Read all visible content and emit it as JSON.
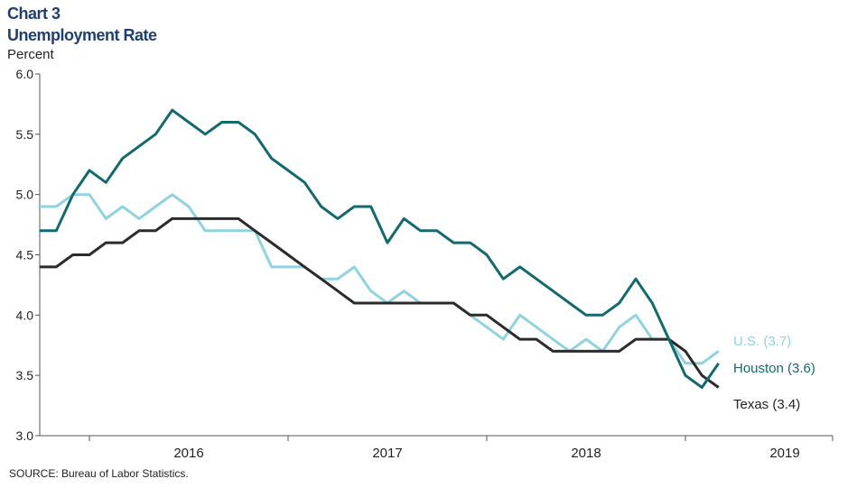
{
  "chart_data": {
    "type": "line",
    "title": "Chart 3",
    "subtitle": "Unemployment Rate",
    "ylabel": "Percent",
    "ylim": [
      3.0,
      6.0
    ],
    "yticks": [
      "3.0",
      "3.5",
      "4.0",
      "4.5",
      "5.0",
      "5.5",
      "6.0"
    ],
    "x_labels": [
      "2016",
      "2017",
      "2018",
      "2019"
    ],
    "x_start": "2015-10",
    "x_end": "2019-12",
    "grid": false,
    "legend": "direct labels at right end of lines",
    "series": [
      {
        "name": "U.S. (3.7)",
        "color": "#8fd3df",
        "values": [
          4.9,
          4.9,
          5.0,
          5.0,
          4.8,
          4.9,
          4.8,
          4.9,
          5.0,
          4.9,
          4.7,
          4.7,
          4.7,
          4.7,
          4.4,
          4.4,
          4.4,
          4.3,
          4.3,
          4.4,
          4.2,
          4.1,
          4.2,
          4.1,
          4.1,
          4.1,
          4.0,
          3.9,
          3.8,
          4.0,
          3.9,
          3.8,
          3.7,
          3.8,
          3.7,
          3.9,
          4.0,
          3.8,
          3.8,
          3.6,
          3.6,
          3.7
        ]
      },
      {
        "name": "Houston (3.6)",
        "color": "#13696e",
        "values": [
          4.7,
          4.7,
          5.0,
          5.2,
          5.1,
          5.3,
          5.4,
          5.5,
          5.7,
          5.6,
          5.5,
          5.6,
          5.6,
          5.5,
          5.3,
          5.2,
          5.1,
          4.9,
          4.8,
          4.9,
          4.9,
          4.6,
          4.8,
          4.7,
          4.7,
          4.6,
          4.6,
          4.5,
          4.3,
          4.4,
          4.3,
          4.2,
          4.1,
          4.0,
          4.0,
          4.1,
          4.3,
          4.1,
          3.8,
          3.5,
          3.4,
          3.6
        ]
      },
      {
        "name": "Texas (3.4)",
        "color": "#2b2b2b",
        "values": [
          4.4,
          4.4,
          4.5,
          4.5,
          4.6,
          4.6,
          4.7,
          4.7,
          4.8,
          4.8,
          4.8,
          4.8,
          4.8,
          4.7,
          4.6,
          4.5,
          4.4,
          4.3,
          4.2,
          4.1,
          4.1,
          4.1,
          4.1,
          4.1,
          4.1,
          4.1,
          4.0,
          4.0,
          3.9,
          3.8,
          3.8,
          3.7,
          3.7,
          3.7,
          3.7,
          3.7,
          3.8,
          3.8,
          3.8,
          3.7,
          3.5,
          3.4
        ]
      }
    ]
  },
  "source": "SOURCE: Bureau of Labor Statistics."
}
